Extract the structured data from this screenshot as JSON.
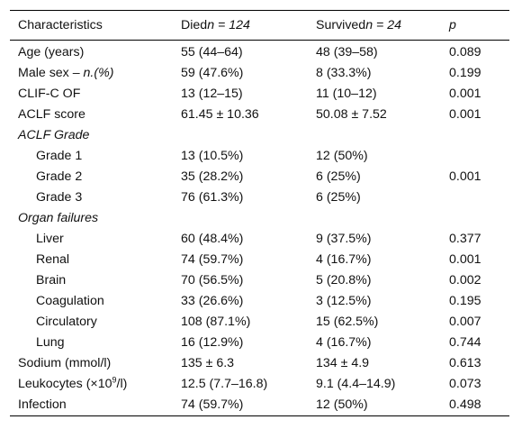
{
  "header": {
    "characteristics": "Characteristics",
    "died_prefix": "Died",
    "died_n": "n = 124",
    "survived_prefix": "Survived",
    "survived_n": "n = 24",
    "p": "p"
  },
  "rows": [
    {
      "label": "Age (years)",
      "died": "55 (44–64)",
      "survived": "48 (39–58)",
      "p": "0.089"
    },
    {
      "label_main": "Male sex – ",
      "label_italic": "n.(%)",
      "died": "59 (47.6%)",
      "survived": "8 (33.3%)",
      "p": "0.199"
    },
    {
      "label": "CLIF-C OF",
      "died": "13 (12–15)",
      "survived": "11 (10–12)",
      "p": "0.001"
    },
    {
      "label": "ACLF score",
      "died": "61.45 ± 10.36",
      "survived": "50.08 ± 7.52",
      "p": "0.001"
    },
    {
      "label": "ACLF Grade"
    },
    {
      "label": "Grade 1",
      "died": "13 (10.5%)",
      "survived": "12 (50%)"
    },
    {
      "label": "Grade 2",
      "died": "35 (28.2%)",
      "survived": "6 (25%)",
      "p": "0.001"
    },
    {
      "label": "Grade 3",
      "died": "76 (61.3%)",
      "survived": "6 (25%)"
    },
    {
      "label": "Organ failures"
    },
    {
      "label": "Liver",
      "died": "60 (48.4%)",
      "survived": "9 (37.5%)",
      "p": "0.377"
    },
    {
      "label": "Renal",
      "died": "74 (59.7%)",
      "survived": "4 (16.7%)",
      "p": "0.001"
    },
    {
      "label": "Brain",
      "died": "70 (56.5%)",
      "survived": "5 (20.8%)",
      "p": "0.002"
    },
    {
      "label": "Coagulation",
      "died": "33 (26.6%)",
      "survived": "3 (12.5%)",
      "p": "0.195"
    },
    {
      "label": "Circulatory",
      "died": "108 (87.1%)",
      "survived": "15 (62.5%)",
      "p": "0.007"
    },
    {
      "label": "Lung",
      "died": "16 (12.9%)",
      "survived": "4 (16.7%)",
      "p": "0.744"
    },
    {
      "label": "Sodium (mmol/l)",
      "died": "135 ± 6.3",
      "survived": "134 ± 4.9",
      "p": "0.613"
    },
    {
      "label_main": "Leukocytes (×10",
      "label_sup": "9",
      "label_end": "/l)",
      "died": "12.5 (7.7–16.8)",
      "survived": "9.1 (4.4–14.9)",
      "p": "0.073"
    },
    {
      "label": "Infection",
      "died": "74 (59.7%)",
      "survived": "12 (50%)",
      "p": "0.498"
    }
  ]
}
